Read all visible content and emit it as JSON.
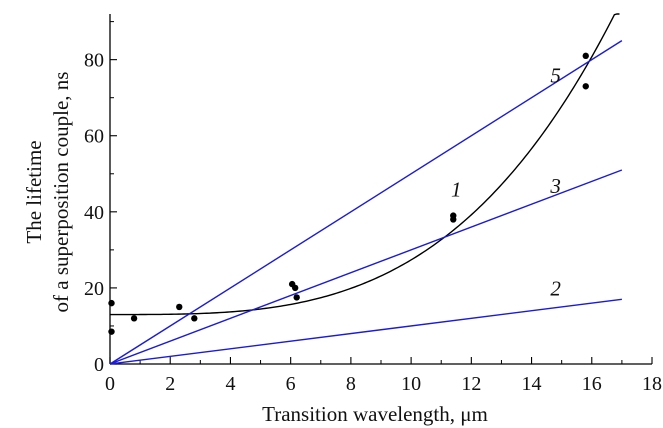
{
  "chart_data": {
    "type": "scatter",
    "xlabel": "Transition wavelength, μm",
    "ylabel_lines": [
      "The lifetime",
      "of a superposition couple, ns"
    ],
    "xlim": [
      0,
      18
    ],
    "ylim": [
      0,
      92
    ],
    "x_ticks": [
      0,
      2,
      4,
      6,
      8,
      10,
      12,
      14,
      16,
      18
    ],
    "y_ticks": [
      0,
      20,
      40,
      60,
      80
    ],
    "grid": false,
    "points": {
      "color": "#000000",
      "data": [
        {
          "x": 0.05,
          "y": 16
        },
        {
          "x": 0.05,
          "y": 8.5
        },
        {
          "x": 0.8,
          "y": 12
        },
        {
          "x": 2.3,
          "y": 15
        },
        {
          "x": 2.8,
          "y": 12
        },
        {
          "x": 6.05,
          "y": 21
        },
        {
          "x": 6.15,
          "y": 20
        },
        {
          "x": 6.2,
          "y": 17.5
        },
        {
          "x": 11.4,
          "y": 39
        },
        {
          "x": 11.4,
          "y": 38
        },
        {
          "x": 15.8,
          "y": 81
        },
        {
          "x": 15.8,
          "y": 73
        }
      ]
    },
    "series": [
      {
        "label": "1",
        "kind": "curve",
        "color": "#000000",
        "formula": "13 + 0.0072*x^3.3",
        "x_range": [
          0,
          16.92
        ]
      },
      {
        "label": "2",
        "kind": "line",
        "color": "#1a1adb",
        "x": [
          0,
          17
        ],
        "y": [
          0,
          17
        ]
      },
      {
        "label": "3",
        "kind": "line",
        "color": "#1a1adb",
        "x": [
          0,
          17
        ],
        "y": [
          0,
          51
        ]
      },
      {
        "label": "5",
        "kind": "line",
        "color": "#1a1adb",
        "x": [
          0,
          17
        ],
        "y": [
          0,
          85
        ]
      }
    ],
    "annotations": [
      {
        "text": "1",
        "x": 11.5,
        "y": 44
      },
      {
        "text": "2",
        "x": 14.8,
        "y": 18
      },
      {
        "text": "3",
        "x": 14.8,
        "y": 45
      },
      {
        "text": "5",
        "x": 14.8,
        "y": 74
      }
    ]
  }
}
